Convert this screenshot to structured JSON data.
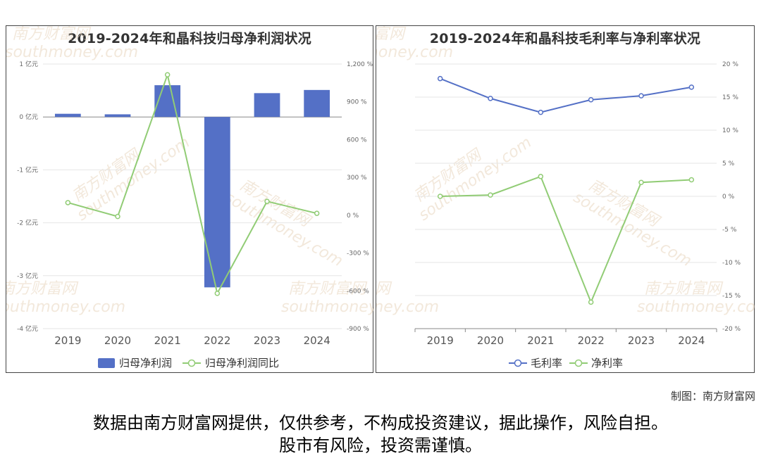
{
  "credit": "制图：南方财富网",
  "disclaimer": {
    "line1": "数据由南方财富网提供，仅供参考，不构成投资建议，据此操作，风险自担。",
    "line2": "股市有风险，投资需谨慎。"
  },
  "watermark": {
    "cn": "南方财富网",
    "en": "southmoney.com"
  },
  "colors": {
    "blue": "#5470c6",
    "green": "#91cc75"
  },
  "chart_data": [
    {
      "type": "bar",
      "title": "2019-2024年和晶科技归母净利润状况",
      "categories": [
        "2019",
        "2020",
        "2021",
        "2022",
        "2023",
        "2024"
      ],
      "y_left": {
        "min": -4,
        "max": 1,
        "ticks": [
          1,
          0,
          -1,
          -2,
          -3,
          -4
        ],
        "tick_labels": [
          "1 亿元",
          "0 亿元",
          "-1 亿元",
          "-2 亿元",
          "-3 亿元",
          "-4 亿元"
        ]
      },
      "y_right": {
        "min": -900,
        "max": 1200,
        "ticks": [
          1200,
          900,
          600,
          300,
          0,
          -300,
          -600,
          -900
        ],
        "tick_labels": [
          "1,200 %",
          "900 %",
          "600 %",
          "300 %",
          "0 %",
          "-300 %",
          "-600 %",
          "-900 %"
        ]
      },
      "series": [
        {
          "name": "归母净利润",
          "kind": "bar",
          "axis": "left",
          "values": [
            0.06,
            0.05,
            0.6,
            -3.22,
            0.45,
            0.51
          ]
        },
        {
          "name": "归母净利润同比",
          "kind": "line",
          "axis": "right",
          "values": [
            100,
            -10,
            1115,
            -620,
            110,
            15
          ]
        }
      ],
      "legend": "bottom-center",
      "grid": true
    },
    {
      "type": "line",
      "title": "2019-2024年和晶科技毛利率与净利率状况",
      "categories": [
        "2019",
        "2020",
        "2021",
        "2022",
        "2023",
        "2024"
      ],
      "y_right": {
        "min": -20,
        "max": 20,
        "ticks": [
          20,
          15,
          10,
          5,
          0,
          -5,
          -10,
          -15,
          -20
        ],
        "tick_labels": [
          "20 %",
          "15 %",
          "10 %",
          "5 %",
          "0 %",
          "-5 %",
          "-10 %",
          "-15 %",
          "-20 %"
        ]
      },
      "series": [
        {
          "name": "毛利率",
          "values": [
            17.8,
            14.8,
            12.7,
            14.6,
            15.2,
            16.5
          ]
        },
        {
          "name": "净利率",
          "values": [
            0.0,
            0.2,
            3.0,
            -16.0,
            2.1,
            2.5
          ]
        }
      ],
      "legend": "bottom-center",
      "grid": true
    }
  ]
}
